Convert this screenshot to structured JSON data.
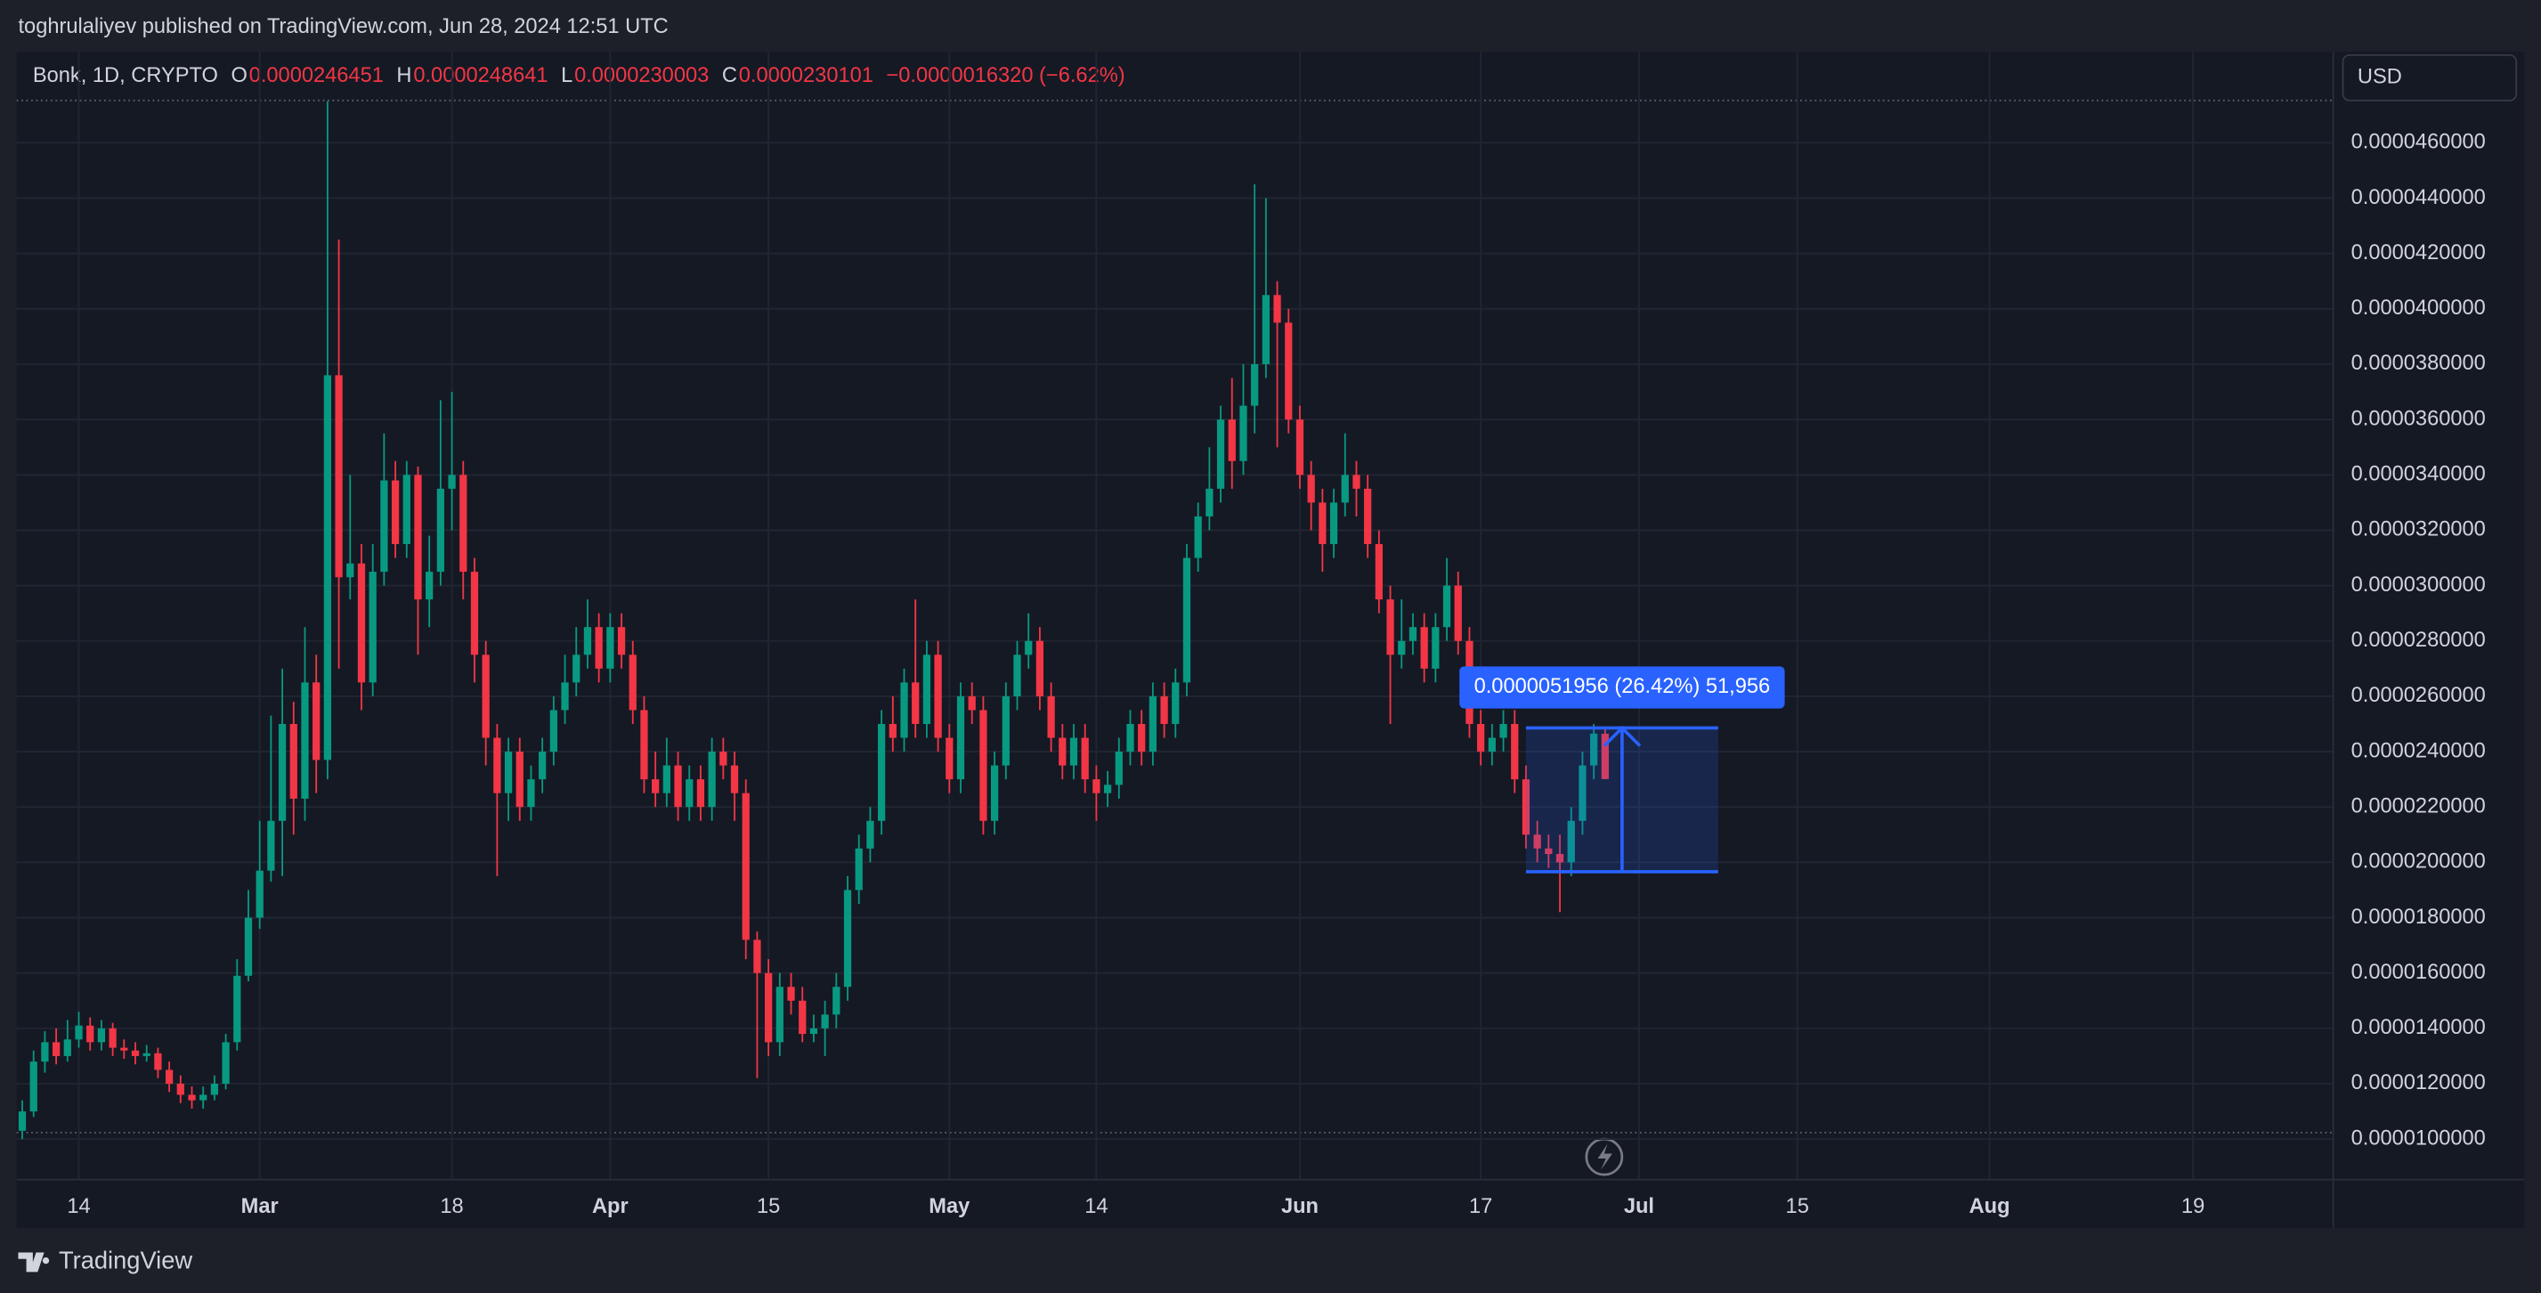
{
  "header": {
    "publisher": "toghrulaliyev published on TradingView.com, Jun 28, 2024 12:51 UTC"
  },
  "legend": {
    "symbol": "Bonk, 1D, CRYPTO",
    "o_label": "O",
    "o": "0.0000246451",
    "h_label": "H",
    "h": "0.0000248641",
    "l_label": "L",
    "l": "0.0000230003",
    "c_label": "C",
    "c": "0.0000230101",
    "change": "−0.0000016320 (−6.62%)"
  },
  "currency": "USD",
  "footer": {
    "brand": "TradingView"
  },
  "chart_data": {
    "type": "candlestick",
    "up_color": "#089981",
    "down_color": "#f23645",
    "grid": true,
    "xlim": [
      39.5,
      244.4
    ],
    "xticks": [
      {
        "value": 45,
        "label": "14"
      },
      {
        "value": 61,
        "label": "Mar"
      },
      {
        "value": 78,
        "label": "18"
      },
      {
        "value": 92,
        "label": "Apr"
      },
      {
        "value": 106,
        "label": "15"
      },
      {
        "value": 122,
        "label": "May"
      },
      {
        "value": 135,
        "label": "14"
      },
      {
        "value": 153,
        "label": "Jun"
      },
      {
        "value": 169,
        "label": "17"
      },
      {
        "value": 183,
        "label": "Jul"
      },
      {
        "value": 197,
        "label": "15"
      },
      {
        "value": 214,
        "label": "Aug"
      },
      {
        "value": 232,
        "label": "19"
      }
    ],
    "ylim": [
      6.78e-06,
      4.753e-05
    ],
    "yticks": [
      {
        "value": 1e-05,
        "label": "0.0000100000"
      },
      {
        "value": 1.2e-05,
        "label": "0.0000120000"
      },
      {
        "value": 1.4e-05,
        "label": "0.0000140000"
      },
      {
        "value": 1.6e-05,
        "label": "0.0000160000"
      },
      {
        "value": 1.8e-05,
        "label": "0.0000180000"
      },
      {
        "value": 2e-05,
        "label": "0.0000200000"
      },
      {
        "value": 2.2e-05,
        "label": "0.0000220000"
      },
      {
        "value": 2.4e-05,
        "label": "0.0000240000"
      },
      {
        "value": 2.6e-05,
        "label": "0.0000260000"
      },
      {
        "value": 2.8e-05,
        "label": "0.0000280000"
      },
      {
        "value": 3e-05,
        "label": "0.0000300000"
      },
      {
        "value": 3.2e-05,
        "label": "0.0000320000"
      },
      {
        "value": 3.4e-05,
        "label": "0.0000340000"
      },
      {
        "value": 3.6e-05,
        "label": "0.0000360000"
      },
      {
        "value": 3.8e-05,
        "label": "0.0000380000"
      },
      {
        "value": 4e-05,
        "label": "0.0000400000"
      },
      {
        "value": 4.2e-05,
        "label": "0.0000420000"
      },
      {
        "value": 4.4e-05,
        "label": "0.0000440000"
      },
      {
        "value": 4.6e-05,
        "label": "0.0000460000"
      }
    ],
    "x": [
      40,
      41,
      42,
      43,
      44,
      45,
      46,
      47,
      48,
      49,
      50,
      51,
      52,
      53,
      54,
      55,
      56,
      57,
      58,
      59,
      60,
      61,
      62,
      63,
      64,
      65,
      66,
      67,
      68,
      69,
      70,
      71,
      72,
      73,
      74,
      75,
      76,
      77,
      78,
      79,
      80,
      81,
      82,
      83,
      84,
      85,
      86,
      87,
      88,
      89,
      90,
      91,
      92,
      93,
      94,
      95,
      96,
      97,
      98,
      99,
      100,
      101,
      102,
      103,
      104,
      105,
      106,
      107,
      108,
      109,
      110,
      111,
      112,
      113,
      114,
      115,
      116,
      117,
      118,
      119,
      120,
      121,
      122,
      123,
      124,
      125,
      126,
      127,
      128,
      129,
      130,
      131,
      132,
      133,
      134,
      135,
      136,
      137,
      138,
      139,
      140,
      141,
      142,
      143,
      144,
      145,
      146,
      147,
      148,
      149,
      150,
      151,
      152,
      153,
      154,
      155,
      156,
      157,
      158,
      159,
      160,
      161,
      162,
      163,
      164,
      165,
      166,
      167,
      168,
      169,
      170,
      171,
      172,
      173,
      174,
      175,
      176,
      177,
      178,
      179,
      180
    ],
    "open": [
      1.03e-05,
      1.1e-05,
      1.28e-05,
      1.35e-05,
      1.3e-05,
      1.36e-05,
      1.41e-05,
      1.35e-05,
      1.4e-05,
      1.33e-05,
      1.32e-05,
      1.3e-05,
      1.31e-05,
      1.25e-05,
      1.2e-05,
      1.16e-05,
      1.14e-05,
      1.16e-05,
      1.2e-05,
      1.35e-05,
      1.59e-05,
      1.8e-05,
      1.97e-05,
      2.15e-05,
      2.5e-05,
      2.23e-05,
      2.65e-05,
      2.37e-05,
      3.76e-05,
      3.03e-05,
      3.08e-05,
      2.65e-05,
      3.05e-05,
      3.38e-05,
      3.15e-05,
      3.4e-05,
      2.95e-05,
      3.05e-05,
      3.35e-05,
      3.4e-05,
      3.05e-05,
      2.75e-05,
      2.45e-05,
      2.25e-05,
      2.4e-05,
      2.2e-05,
      2.3e-05,
      2.4e-05,
      2.55e-05,
      2.65e-05,
      2.75e-05,
      2.85e-05,
      2.7e-05,
      2.85e-05,
      2.75e-05,
      2.55e-05,
      2.3e-05,
      2.25e-05,
      2.35e-05,
      2.2e-05,
      2.3e-05,
      2.2e-05,
      2.4e-05,
      2.35e-05,
      2.25e-05,
      1.72e-05,
      1.6e-05,
      1.35e-05,
      1.55e-05,
      1.5e-05,
      1.38e-05,
      1.4e-05,
      1.45e-05,
      1.55e-05,
      1.9e-05,
      2.05e-05,
      2.15e-05,
      2.5e-05,
      2.45e-05,
      2.65e-05,
      2.5e-05,
      2.75e-05,
      2.45e-05,
      2.3e-05,
      2.6e-05,
      2.55e-05,
      2.15e-05,
      2.35e-05,
      2.6e-05,
      2.75e-05,
      2.8e-05,
      2.6e-05,
      2.45e-05,
      2.35e-05,
      2.45e-05,
      2.3e-05,
      2.25e-05,
      2.28e-05,
      2.4e-05,
      2.5e-05,
      2.4e-05,
      2.6e-05,
      2.5e-05,
      2.65e-05,
      3.1e-05,
      3.25e-05,
      3.35e-05,
      3.6e-05,
      3.45e-05,
      3.65e-05,
      3.8e-05,
      4.05e-05,
      3.95e-05,
      3.6e-05,
      3.4e-05,
      3.3e-05,
      3.15e-05,
      3.3e-05,
      3.4e-05,
      3.35e-05,
      3.15e-05,
      2.95e-05,
      2.75e-05,
      2.8e-05,
      2.85e-05,
      2.7e-05,
      2.85e-05,
      3e-05,
      2.8e-05,
      2.5e-05,
      2.4e-05,
      2.45e-05,
      2.5e-05,
      2.3e-05,
      2.1e-05,
      2.05e-05,
      2.03e-05,
      2e-05,
      2.15e-05,
      2.35e-05,
      2.46451e-05
    ],
    "high": [
      1.14e-05,
      1.32e-05,
      1.39e-05,
      1.4e-05,
      1.43e-05,
      1.46e-05,
      1.44e-05,
      1.43e-05,
      1.42e-05,
      1.36e-05,
      1.35e-05,
      1.34e-05,
      1.33e-05,
      1.28e-05,
      1.23e-05,
      1.19e-05,
      1.19e-05,
      1.23e-05,
      1.38e-05,
      1.65e-05,
      1.9e-05,
      2.15e-05,
      2.53e-05,
      2.7e-05,
      2.58e-05,
      2.85e-05,
      2.75e-05,
      4.75e-05,
      4.25e-05,
      3.4e-05,
      3.15e-05,
      3.15e-05,
      3.55e-05,
      3.45e-05,
      3.45e-05,
      3.43e-05,
      3.18e-05,
      3.67e-05,
      3.7e-05,
      3.45e-05,
      3.1e-05,
      2.8e-05,
      2.5e-05,
      2.45e-05,
      2.45e-05,
      2.35e-05,
      2.45e-05,
      2.6e-05,
      2.75e-05,
      2.85e-05,
      2.95e-05,
      2.9e-05,
      2.9e-05,
      2.9e-05,
      2.8e-05,
      2.6e-05,
      2.4e-05,
      2.45e-05,
      2.4e-05,
      2.35e-05,
      2.35e-05,
      2.45e-05,
      2.45e-05,
      2.4e-05,
      2.3e-05,
      1.75e-05,
      1.65e-05,
      1.6e-05,
      1.6e-05,
      1.55e-05,
      1.45e-05,
      1.5e-05,
      1.6e-05,
      1.95e-05,
      2.1e-05,
      2.2e-05,
      2.55e-05,
      2.6e-05,
      2.7e-05,
      2.95e-05,
      2.8e-05,
      2.8e-05,
      2.5e-05,
      2.65e-05,
      2.65e-05,
      2.6e-05,
      2.4e-05,
      2.65e-05,
      2.8e-05,
      2.9e-05,
      2.85e-05,
      2.65e-05,
      2.5e-05,
      2.5e-05,
      2.5e-05,
      2.35e-05,
      2.33e-05,
      2.45e-05,
      2.55e-05,
      2.55e-05,
      2.65e-05,
      2.65e-05,
      2.7e-05,
      3.15e-05,
      3.3e-05,
      3.5e-05,
      3.65e-05,
      3.75e-05,
      3.8e-05,
      4.45e-05,
      4.4e-05,
      4.1e-05,
      4e-05,
      3.65e-05,
      3.45e-05,
      3.35e-05,
      3.35e-05,
      3.55e-05,
      3.45e-05,
      3.4e-05,
      3.2e-05,
      3e-05,
      2.95e-05,
      2.9e-05,
      2.9e-05,
      2.9e-05,
      3.1e-05,
      3.05e-05,
      2.85e-05,
      2.55e-05,
      2.5e-05,
      2.55e-05,
      2.55e-05,
      2.35e-05,
      2.15e-05,
      2.1e-05,
      2.1e-05,
      2.2e-05,
      2.4e-05,
      2.5e-05,
      2.48641e-05
    ],
    "low": [
      1e-05,
      1.08e-05,
      1.24e-05,
      1.27e-05,
      1.28e-05,
      1.33e-05,
      1.32e-05,
      1.32e-05,
      1.3e-05,
      1.29e-05,
      1.27e-05,
      1.28e-05,
      1.22e-05,
      1.17e-05,
      1.13e-05,
      1.11e-05,
      1.11e-05,
      1.14e-05,
      1.18e-05,
      1.32e-05,
      1.57e-05,
      1.76e-05,
      1.93e-05,
      1.95e-05,
      2.1e-05,
      2.15e-05,
      2.25e-05,
      2.3e-05,
      2.7e-05,
      2.95e-05,
      2.55e-05,
      2.6e-05,
      3e-05,
      3.1e-05,
      3.1e-05,
      2.75e-05,
      2.85e-05,
      3e-05,
      3.2e-05,
      2.95e-05,
      2.65e-05,
      2.35e-05,
      1.95e-05,
      2.15e-05,
      2.15e-05,
      2.15e-05,
      2.25e-05,
      2.35e-05,
      2.5e-05,
      2.6e-05,
      2.7e-05,
      2.65e-05,
      2.65e-05,
      2.7e-05,
      2.5e-05,
      2.25e-05,
      2.2e-05,
      2.2e-05,
      2.15e-05,
      2.15e-05,
      2.15e-05,
      2.15e-05,
      2.3e-05,
      2.15e-05,
      1.65e-05,
      1.22e-05,
      1.3e-05,
      1.3e-05,
      1.45e-05,
      1.35e-05,
      1.35e-05,
      1.3e-05,
      1.4e-05,
      1.5e-05,
      1.85e-05,
      2e-05,
      2.1e-05,
      2.4e-05,
      2.4e-05,
      2.45e-05,
      2.45e-05,
      2.4e-05,
      2.25e-05,
      2.25e-05,
      2.5e-05,
      2.1e-05,
      2.1e-05,
      2.3e-05,
      2.55e-05,
      2.7e-05,
      2.55e-05,
      2.4e-05,
      2.3e-05,
      2.3e-05,
      2.25e-05,
      2.15e-05,
      2.2e-05,
      2.23e-05,
      2.35e-05,
      2.35e-05,
      2.35e-05,
      2.45e-05,
      2.45e-05,
      2.6e-05,
      3.05e-05,
      3.2e-05,
      3.3e-05,
      3.35e-05,
      3.4e-05,
      3.55e-05,
      3.75e-05,
      3.5e-05,
      3.55e-05,
      3.35e-05,
      3.2e-05,
      3.05e-05,
      3.1e-05,
      3.25e-05,
      3.25e-05,
      3.1e-05,
      2.9e-05,
      2.5e-05,
      2.7e-05,
      2.75e-05,
      2.65e-05,
      2.65e-05,
      2.8e-05,
      2.75e-05,
      2.45e-05,
      2.35e-05,
      2.35e-05,
      2.4e-05,
      2.25e-05,
      2.05e-05,
      2e-05,
      1.98e-05,
      1.82e-05,
      1.95e-05,
      2.1e-05,
      2.3e-05,
      2.30003e-05
    ],
    "close": [
      1.1e-05,
      1.28e-05,
      1.35e-05,
      1.3e-05,
      1.36e-05,
      1.41e-05,
      1.35e-05,
      1.4e-05,
      1.33e-05,
      1.32e-05,
      1.3e-05,
      1.31e-05,
      1.25e-05,
      1.2e-05,
      1.16e-05,
      1.14e-05,
      1.16e-05,
      1.2e-05,
      1.35e-05,
      1.59e-05,
      1.8e-05,
      1.97e-05,
      2.15e-05,
      2.5e-05,
      2.23e-05,
      2.65e-05,
      2.37e-05,
      3.76e-05,
      3.03e-05,
      3.08e-05,
      2.65e-05,
      3.05e-05,
      3.38e-05,
      3.15e-05,
      3.4e-05,
      2.95e-05,
      3.05e-05,
      3.35e-05,
      3.4e-05,
      3.05e-05,
      2.75e-05,
      2.45e-05,
      2.25e-05,
      2.4e-05,
      2.2e-05,
      2.3e-05,
      2.4e-05,
      2.55e-05,
      2.65e-05,
      2.75e-05,
      2.85e-05,
      2.7e-05,
      2.85e-05,
      2.75e-05,
      2.55e-05,
      2.3e-05,
      2.25e-05,
      2.35e-05,
      2.2e-05,
      2.3e-05,
      2.2e-05,
      2.4e-05,
      2.35e-05,
      2.25e-05,
      1.72e-05,
      1.6e-05,
      1.35e-05,
      1.55e-05,
      1.5e-05,
      1.38e-05,
      1.4e-05,
      1.45e-05,
      1.55e-05,
      1.9e-05,
      2.05e-05,
      2.15e-05,
      2.5e-05,
      2.45e-05,
      2.65e-05,
      2.5e-05,
      2.75e-05,
      2.45e-05,
      2.3e-05,
      2.6e-05,
      2.55e-05,
      2.15e-05,
      2.35e-05,
      2.6e-05,
      2.75e-05,
      2.8e-05,
      2.6e-05,
      2.45e-05,
      2.35e-05,
      2.45e-05,
      2.3e-05,
      2.25e-05,
      2.28e-05,
      2.4e-05,
      2.5e-05,
      2.4e-05,
      2.6e-05,
      2.5e-05,
      2.65e-05,
      3.1e-05,
      3.25e-05,
      3.35e-05,
      3.6e-05,
      3.45e-05,
      3.65e-05,
      3.8e-05,
      4.05e-05,
      3.95e-05,
      3.6e-05,
      3.4e-05,
      3.3e-05,
      3.15e-05,
      3.3e-05,
      3.4e-05,
      3.35e-05,
      3.15e-05,
      2.95e-05,
      2.75e-05,
      2.8e-05,
      2.85e-05,
      2.7e-05,
      2.85e-05,
      3e-05,
      2.8e-05,
      2.5e-05,
      2.4e-05,
      2.45e-05,
      2.5e-05,
      2.3e-05,
      2.1e-05,
      2.05e-05,
      2.03e-05,
      2e-05,
      2.15e-05,
      2.35e-05,
      2.465e-05,
      2.30101e-05
    ],
    "measure": {
      "label": "0.0000051956 (26.42%) 51,956",
      "color": "#2962ff",
      "x": [
        173,
        190
      ],
      "y": [
        1.966e-05,
        2.48556e-05
      ]
    }
  }
}
